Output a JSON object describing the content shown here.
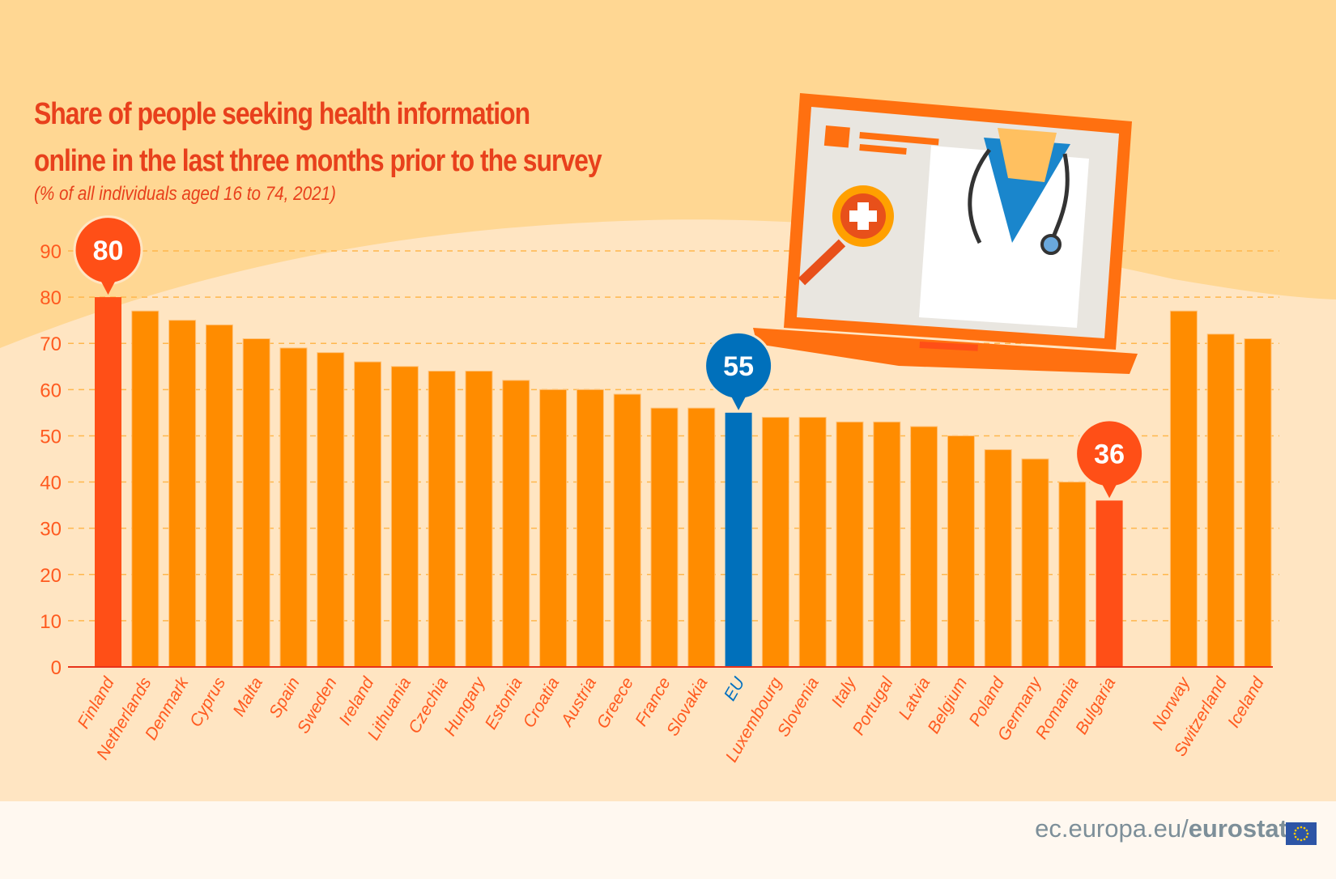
{
  "page": {
    "title_line1": "Share of people seeking health information",
    "title_line2": "online in the last three months prior to the survey",
    "subtitle": "(% of all individuals aged 16 to 74, 2021)",
    "footer_prefix": "ec.europa.eu/",
    "footer_brand": "eurostat",
    "colors": {
      "bar": "#ff8c00",
      "highlight": "#ff4f17",
      "eu": "#0070bb",
      "label": "#ff5a1f",
      "title": "#e8401c",
      "background_top": "#ffd793",
      "background_bottom": "#ffe5c2"
    },
    "illustration": "laptop-with-doctor-and-magnifier"
  },
  "chart_data": {
    "type": "bar",
    "title": "Share of people seeking health information online in the last three months prior to the survey",
    "subtitle": "(% of all individuals aged 16 to 74, 2021)",
    "xlabel": "",
    "ylabel": "",
    "ylim": [
      0,
      90
    ],
    "yticks": [
      0,
      10,
      20,
      30,
      40,
      50,
      60,
      70,
      80,
      90
    ],
    "grid": true,
    "categories": [
      "Finland",
      "Netherlands",
      "Denmark",
      "Cyprus",
      "Malta",
      "Spain",
      "Sweden",
      "Ireland",
      "Lithuania",
      "Czechia",
      "Hungary",
      "Estonia",
      "Croatia",
      "Austria",
      "Greece",
      "France",
      "Slovakia",
      "EU",
      "Luxembourg",
      "Slovenia",
      "Italy",
      "Portugal",
      "Latvia",
      "Belgium",
      "Poland",
      "Germany",
      "Romania",
      "Bulgaria",
      "Norway",
      "Switzerland",
      "Iceland"
    ],
    "values": [
      80,
      77,
      75,
      74,
      71,
      69,
      68,
      66,
      65,
      64,
      64,
      62,
      60,
      60,
      59,
      56,
      56,
      55,
      54,
      54,
      53,
      53,
      52,
      50,
      47,
      45,
      40,
      36,
      77,
      72,
      71
    ],
    "highlights": {
      "Finland": "max",
      "EU": "eu",
      "Bulgaria": "min"
    },
    "callouts": [
      {
        "category": "Finland",
        "label": "80"
      },
      {
        "category": "EU",
        "label": "55"
      },
      {
        "category": "Bulgaria",
        "label": "36"
      }
    ],
    "group_gap_before": "Norway"
  }
}
